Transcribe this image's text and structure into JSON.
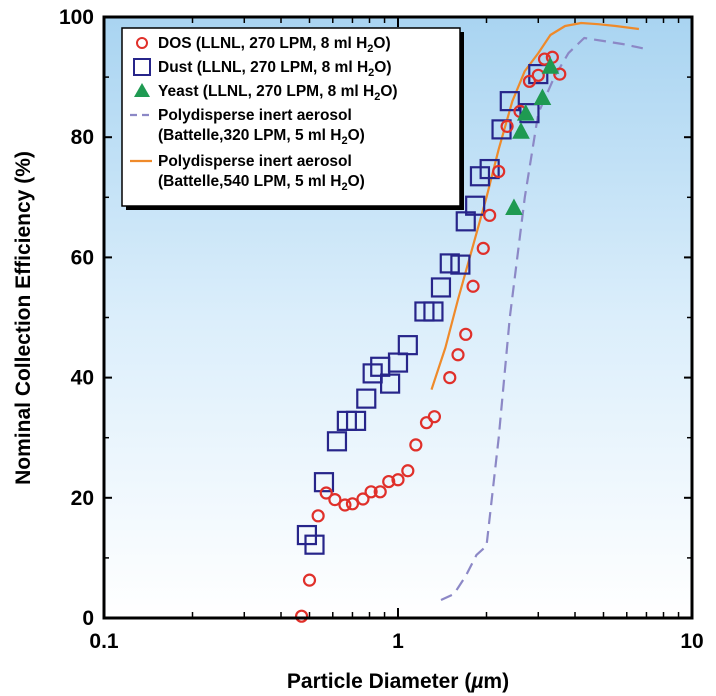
{
  "chart_data": {
    "type": "scatter",
    "title": "",
    "xlabel": "Particle Diameter (µm)",
    "ylabel": "Nominal Collection Efficiency (%)",
    "xscale": "log",
    "xlim": [
      0.1,
      10
    ],
    "ylim": [
      0,
      100
    ],
    "x_ticks": [
      0.1,
      1,
      10
    ],
    "x_tick_labels": [
      "0.1",
      "1",
      "10"
    ],
    "y_ticks": [
      0,
      20,
      40,
      60,
      80,
      100
    ],
    "y_tick_labels": [
      "0",
      "20",
      "40",
      "60",
      "80",
      "100"
    ],
    "grid": false,
    "background": "light-blue gradient",
    "legend_position": "top-left",
    "series": [
      {
        "name_parts": [
          "DOS (LLNL, 270 LPM, 8 ml H",
          "2",
          "O)"
        ],
        "marker": "circle",
        "color": "#e0302a",
        "x": [
          0.47,
          0.5,
          0.535,
          0.57,
          0.61,
          0.66,
          0.7,
          0.76,
          0.81,
          0.87,
          0.93,
          1.0,
          1.08,
          1.15,
          1.25,
          1.33,
          1.5,
          1.6,
          1.7,
          1.8,
          1.95,
          2.05,
          2.2,
          2.35,
          2.6,
          2.8,
          3.0,
          3.15,
          3.35,
          3.55
        ],
        "y": [
          0.3,
          6.3,
          17.0,
          20.8,
          19.7,
          18.8,
          19.0,
          19.8,
          21.0,
          21.0,
          22.7,
          23.0,
          24.5,
          28.8,
          32.5,
          33.5,
          40.0,
          43.8,
          47.2,
          55.2,
          61.5,
          67.0,
          74.3,
          81.8,
          84.3,
          89.3,
          90.3,
          93.0,
          93.3,
          90.5
        ]
      },
      {
        "name_parts": [
          "Dust (LLNL, 270 LPM, 8 ml H",
          "2",
          "O)"
        ],
        "marker": "square",
        "color": "#27258a",
        "x": [
          0.49,
          0.52,
          0.56,
          0.62,
          0.67,
          0.72,
          0.78,
          0.82,
          0.87,
          0.94,
          1.0,
          1.08,
          1.23,
          1.32,
          1.4,
          1.5,
          1.63,
          1.7,
          1.83,
          1.9,
          2.05,
          2.25,
          2.4,
          2.8,
          3.0
        ],
        "y": [
          13.8,
          12.2,
          22.6,
          29.4,
          32.8,
          32.8,
          36.5,
          40.7,
          41.8,
          39.0,
          42.5,
          45.4,
          51.0,
          51.0,
          55.0,
          59.0,
          58.8,
          66.0,
          68.6,
          73.5,
          74.7,
          81.3,
          86.0,
          84.0,
          90.5
        ]
      },
      {
        "name_parts": [
          "Yeast (LLNL, 270 LPM, 8 ml H",
          "2",
          "O)"
        ],
        "marker": "triangle",
        "color": "#1f9a52",
        "x": [
          2.48,
          2.62,
          2.72,
          3.1,
          3.3
        ],
        "y": [
          68.3,
          81.0,
          84.0,
          86.6,
          91.8
        ]
      },
      {
        "name_parts": [
          "Polydisperse inert aerosol",
          "(Battelle,320 LPM, 5 ml H",
          "2",
          "O)"
        ],
        "marker": "dashed-line",
        "color": "#8c88c6",
        "x": [
          1.4,
          1.55,
          1.7,
          1.85,
          2.0,
          2.2,
          2.4,
          2.7,
          3.0,
          3.4,
          3.8,
          4.3,
          5.0,
          5.8,
          6.8
        ],
        "y": [
          3.0,
          4.0,
          7.0,
          10.5,
          12.0,
          30.0,
          50.0,
          70.0,
          84.0,
          90.0,
          94.0,
          96.5,
          96.0,
          95.5,
          94.8
        ]
      },
      {
        "name_parts": [
          "Polydisperse inert aerosol",
          "(Battelle,540 LPM, 5 ml H",
          "2",
          "O)"
        ],
        "marker": "line",
        "color": "#ef8a2a",
        "x": [
          1.3,
          1.45,
          1.6,
          1.8,
          2.0,
          2.2,
          2.45,
          2.7,
          3.0,
          3.3,
          3.7,
          4.2,
          4.8,
          5.5,
          6.6
        ],
        "y": [
          38.0,
          45.0,
          53.0,
          62.0,
          70.0,
          78.0,
          86.0,
          91.0,
          94.0,
          97.0,
          98.5,
          99.0,
          98.8,
          98.5,
          98.0
        ]
      }
    ]
  }
}
